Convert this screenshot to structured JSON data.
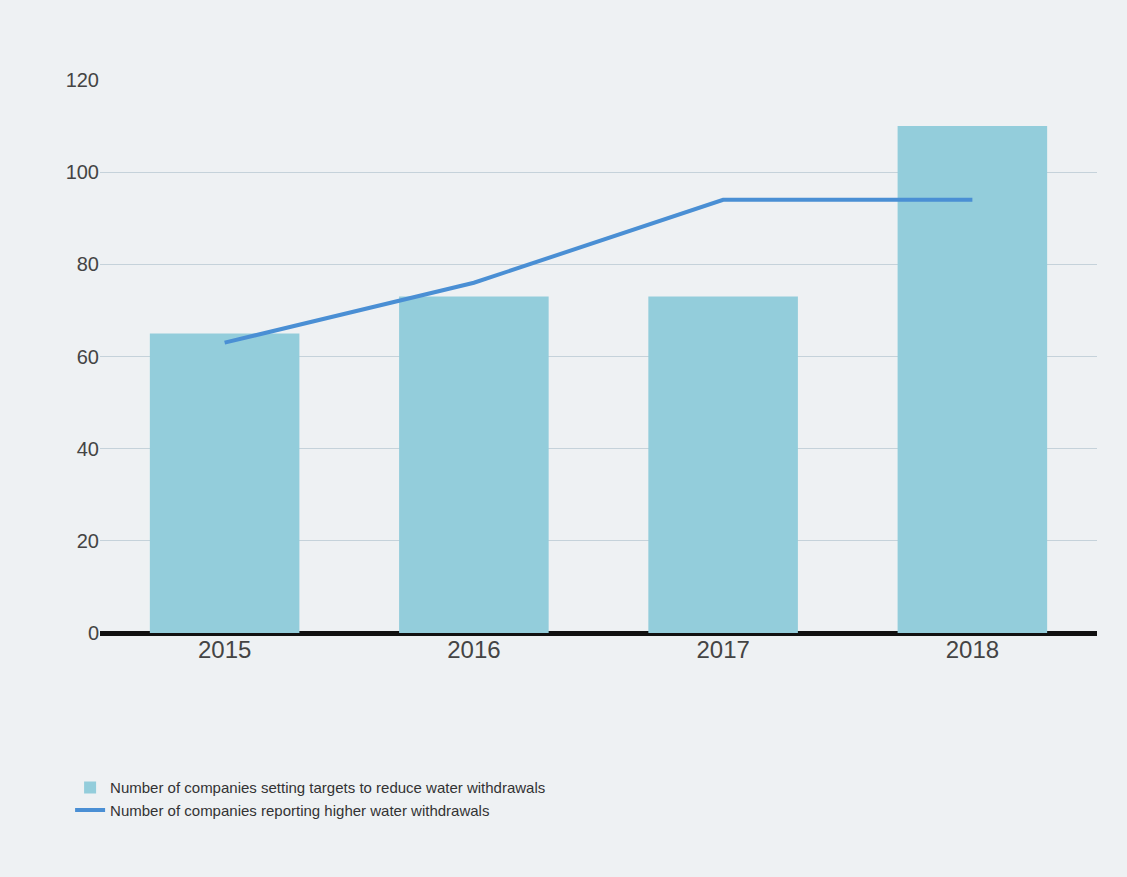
{
  "chart_data": {
    "type": "bar",
    "categories": [
      "2015",
      "2016",
      "2017",
      "2018"
    ],
    "series": [
      {
        "name": "Number of companies setting targets to reduce water withdrawals",
        "type": "bar",
        "color": "#93cddb",
        "values": [
          65,
          73,
          73,
          110
        ]
      },
      {
        "name": "Number of companies reporting higher water withdrawals",
        "type": "line",
        "color": "#4a8fd4",
        "values": [
          63,
          76,
          94,
          94
        ]
      }
    ],
    "ylim": [
      0,
      120
    ],
    "yticks": [
      0,
      20,
      40,
      60,
      80,
      100,
      120
    ],
    "grid": true,
    "legend": "bottom-left"
  }
}
